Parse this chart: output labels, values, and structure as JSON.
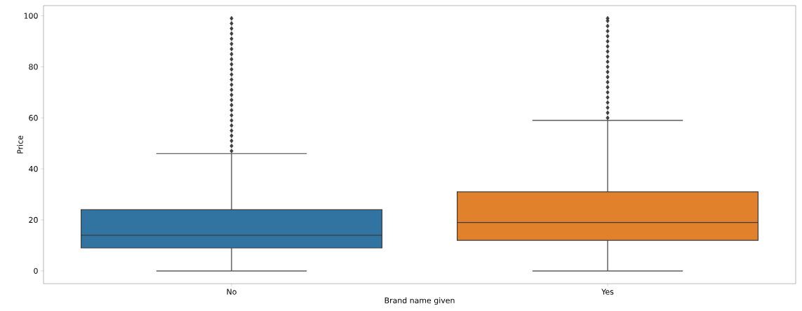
{
  "chart_data": {
    "type": "box",
    "xlabel": "Brand name given",
    "ylabel": "Price",
    "categories": [
      "No",
      "Yes"
    ],
    "ylim": [
      -5,
      104
    ],
    "yticks": [
      0,
      20,
      40,
      60,
      80,
      100
    ],
    "series": [
      {
        "colors": [
          "#3274a1",
          "#e1812c"
        ],
        "boxes": [
          {
            "low": 0,
            "q1": 9,
            "median": 14,
            "q3": 24,
            "high": 46,
            "outliers": [
              47,
              49,
              51,
              53,
              55,
              57,
              59,
              61,
              63,
              65,
              67,
              69,
              71,
              73,
              75,
              77,
              79,
              81,
              83,
              85,
              87,
              89,
              91,
              93,
              95,
              97,
              99
            ]
          },
          {
            "low": 0,
            "q1": 12,
            "median": 19,
            "q3": 31,
            "high": 59,
            "outliers": [
              60,
              62,
              64,
              66,
              68,
              70,
              72,
              74,
              76,
              78,
              80,
              82,
              84,
              86,
              88,
              90,
              92,
              94,
              96,
              98,
              99
            ]
          }
        ]
      }
    ],
    "marker": "diamond",
    "grid": false
  }
}
